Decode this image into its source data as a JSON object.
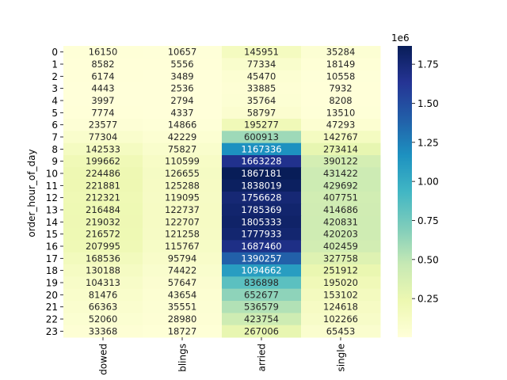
{
  "chart_data": {
    "type": "heatmap",
    "ylabel": "order_hour_of_day",
    "columns": [
      "dowed",
      "blings",
      "arried",
      "single"
    ],
    "rows": [
      "0",
      "1",
      "2",
      "3",
      "4",
      "5",
      "6",
      "7",
      "8",
      "9",
      "10",
      "11",
      "12",
      "13",
      "14",
      "15",
      "16",
      "17",
      "18",
      "19",
      "20",
      "21",
      "22",
      "23"
    ],
    "values": [
      [
        16150,
        10657,
        145951,
        35284
      ],
      [
        8582,
        5556,
        77334,
        18149
      ],
      [
        6174,
        3489,
        45470,
        10558
      ],
      [
        4443,
        2536,
        33885,
        7932
      ],
      [
        3997,
        2794,
        35764,
        8208
      ],
      [
        7774,
        4337,
        58797,
        13510
      ],
      [
        23577,
        14866,
        195277,
        47293
      ],
      [
        77304,
        42229,
        600913,
        142767
      ],
      [
        142533,
        75827,
        1167336,
        273414
      ],
      [
        199662,
        110599,
        1663228,
        390122
      ],
      [
        224486,
        126655,
        1867181,
        431422
      ],
      [
        221881,
        125288,
        1838019,
        429692
      ],
      [
        212321,
        119095,
        1756628,
        407751
      ],
      [
        216484,
        122737,
        1785369,
        414686
      ],
      [
        219032,
        122707,
        1805333,
        420831
      ],
      [
        216572,
        121258,
        1777933,
        420203
      ],
      [
        207995,
        115767,
        1687460,
        402459
      ],
      [
        168536,
        95794,
        1390257,
        327758
      ],
      [
        130188,
        74422,
        1094662,
        251912
      ],
      [
        104313,
        57647,
        836898,
        195020
      ],
      [
        81476,
        43654,
        652677,
        153102
      ],
      [
        66363,
        35551,
        536579,
        124618
      ],
      [
        52060,
        28980,
        423754,
        102266
      ],
      [
        33368,
        18727,
        267006,
        65453
      ]
    ],
    "colormap": "YlGnBu",
    "colorbar": {
      "ticks": [
        0.25,
        0.5,
        0.75,
        1.0,
        1.25,
        1.5,
        1.75
      ],
      "tick_labels": [
        "0.25",
        "0.50",
        "0.75",
        "1.00",
        "1.25",
        "1.50",
        "1.75"
      ],
      "offset_label": "1e6",
      "vmin": 2536,
      "vmax": 1867181
    }
  }
}
